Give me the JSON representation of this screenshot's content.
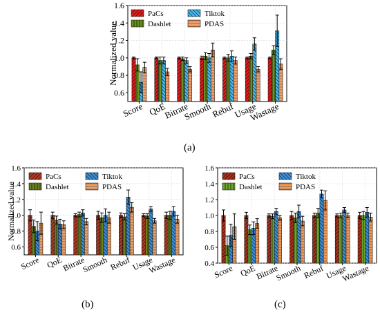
{
  "captions": [
    "(a)",
    "(b)",
    "(c)"
  ],
  "legend_names": [
    "PaCs",
    "Tiktok",
    "Dashlet",
    "PDAS"
  ],
  "colors": {
    "a": [
      "#e31a1c",
      "#48b9ee",
      "#6b8e23",
      "#f4a16a"
    ],
    "b": [
      "#b23a24",
      "#3c8dd8",
      "#6b7f1f",
      "#e8a26a"
    ],
    "c": [
      "#a8321c",
      "#3a8fdc",
      "#6fa32a",
      "#ef9a5a"
    ]
  },
  "chart_data": [
    {
      "type": "bar",
      "id": "a",
      "title": "",
      "xlabel": "",
      "ylabel": "Normalized value",
      "ylim": [
        0.5,
        1.6
      ],
      "yticks": [
        "0.6",
        "0.8",
        "1.0",
        "1.2",
        "1.4",
        "1.6"
      ],
      "categories": [
        "Score",
        "QoE",
        "Bitrate",
        "Smooth",
        "Rebuf",
        "Usage",
        "Wastage"
      ],
      "grid": true,
      "legend": "top-left",
      "series": [
        {
          "name": "PaCs",
          "values": [
            1.0,
            1.0,
            1.0,
            1.0,
            1.0,
            1.0,
            1.0
          ],
          "err": [
            0.01,
            0.01,
            0.01,
            0.02,
            0.01,
            0.01,
            0.01
          ]
        },
        {
          "name": "Dashlet",
          "values": [
            0.92,
            0.97,
            0.99,
            1.02,
            1.0,
            1.02,
            1.09
          ],
          "err": [
            0.07,
            0.04,
            0.02,
            0.04,
            0.04,
            0.03,
            0.05
          ]
        },
        {
          "name": "Tiktok",
          "values": [
            0.72,
            0.97,
            0.97,
            1.0,
            1.02,
            1.16,
            1.31
          ],
          "err": [
            0.12,
            0.04,
            0.03,
            0.05,
            0.06,
            0.07,
            0.18
          ]
        },
        {
          "name": "PDAS",
          "values": [
            0.89,
            0.84,
            0.87,
            1.09,
            0.97,
            0.87,
            0.93
          ],
          "err": [
            0.06,
            0.04,
            0.03,
            0.08,
            0.04,
            0.03,
            0.06
          ]
        }
      ]
    },
    {
      "type": "bar",
      "id": "b",
      "title": "",
      "xlabel": "",
      "ylabel": "Normalized value",
      "ylim": [
        0.5,
        1.6
      ],
      "yticks": [
        "0.6",
        "0.8",
        "1.0",
        "1.2",
        "1.4",
        "1.6"
      ],
      "categories": [
        "Score",
        "QoE",
        "Bitrate",
        "Smooth",
        "Rebuf",
        "Usage",
        "Wastage"
      ],
      "grid": true,
      "legend": "top-left",
      "series": [
        {
          "name": "PaCs",
          "values": [
            1.0,
            1.0,
            1.0,
            1.0,
            1.0,
            1.0,
            1.0
          ],
          "err": [
            0.07,
            0.04,
            0.02,
            0.05,
            0.03,
            0.02,
            0.04
          ]
        },
        {
          "name": "Dashlet",
          "values": [
            0.86,
            0.94,
            1.01,
            0.97,
            0.98,
            0.99,
            1.0
          ],
          "err": [
            0.08,
            0.05,
            0.03,
            0.06,
            0.04,
            0.03,
            0.05
          ]
        },
        {
          "name": "Tiktok",
          "values": [
            0.8,
            0.89,
            1.03,
            1.0,
            1.23,
            1.08,
            1.05
          ],
          "err": [
            0.12,
            0.06,
            0.04,
            0.08,
            0.09,
            0.03,
            0.06
          ]
        },
        {
          "name": "PDAS",
          "values": [
            0.9,
            0.88,
            0.92,
            0.97,
            1.1,
            0.93,
            0.95
          ],
          "err": [
            0.14,
            0.05,
            0.04,
            0.07,
            0.06,
            0.03,
            0.05
          ]
        }
      ]
    },
    {
      "type": "bar",
      "id": "c",
      "title": "",
      "xlabel": "",
      "ylabel": "",
      "ylim": [
        0.4,
        1.6
      ],
      "yticks": [
        "0.4",
        "0.6",
        "0.8",
        "1.0",
        "1.2",
        "1.4",
        "1.6"
      ],
      "categories": [
        "Score",
        "QoE",
        "Bitrate",
        "Smooth",
        "Rebuf",
        "Usage",
        "Wastage"
      ],
      "grid": true,
      "legend": "top-left",
      "series": [
        {
          "name": "PaCs",
          "values": [
            1.0,
            1.0,
            1.0,
            1.0,
            1.0,
            1.0,
            1.0
          ],
          "err": [
            0.07,
            0.04,
            0.02,
            0.05,
            0.03,
            0.02,
            0.04
          ]
        },
        {
          "name": "Dashlet",
          "values": [
            0.62,
            0.82,
            0.99,
            0.97,
            1.03,
            1.0,
            1.0
          ],
          "err": [
            0.12,
            0.06,
            0.03,
            0.06,
            0.06,
            0.03,
            0.05
          ]
        },
        {
          "name": "Tiktok",
          "values": [
            0.75,
            0.84,
            1.05,
            1.05,
            1.27,
            1.07,
            1.04
          ],
          "err": [
            0.14,
            0.08,
            0.04,
            0.08,
            0.05,
            0.03,
            0.06
          ]
        },
        {
          "name": "PDAS",
          "values": [
            0.86,
            0.9,
            0.97,
            0.93,
            1.19,
            1.0,
            0.98
          ],
          "err": [
            0.16,
            0.06,
            0.03,
            0.06,
            0.12,
            0.03,
            0.05
          ]
        }
      ]
    }
  ]
}
